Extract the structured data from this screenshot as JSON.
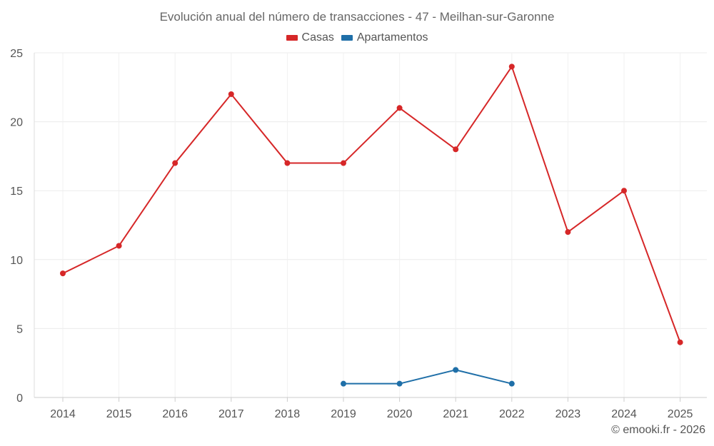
{
  "chart_data": {
    "type": "line",
    "title": "Evolución anual del número de transacciones - 47 - Meilhan-sur-Garonne",
    "xlabel": "",
    "ylabel": "",
    "categories": [
      "2014",
      "2015",
      "2016",
      "2017",
      "2018",
      "2019",
      "2020",
      "2021",
      "2022",
      "2023",
      "2024",
      "2025"
    ],
    "ylim": [
      0,
      25
    ],
    "yticks": [
      0,
      5,
      10,
      15,
      20,
      25
    ],
    "grid": true,
    "legend_position": "top-center",
    "series": [
      {
        "name": "Casas",
        "color": "#d62728",
        "values": [
          9,
          11,
          17,
          22,
          17,
          17,
          21,
          18,
          24,
          12,
          15,
          4
        ]
      },
      {
        "name": "Apartamentos",
        "color": "#1f6fa8",
        "values": [
          null,
          null,
          null,
          null,
          null,
          1,
          1,
          2,
          1,
          null,
          null,
          null
        ]
      }
    ]
  },
  "credit": "© emooki.fr - 2026"
}
